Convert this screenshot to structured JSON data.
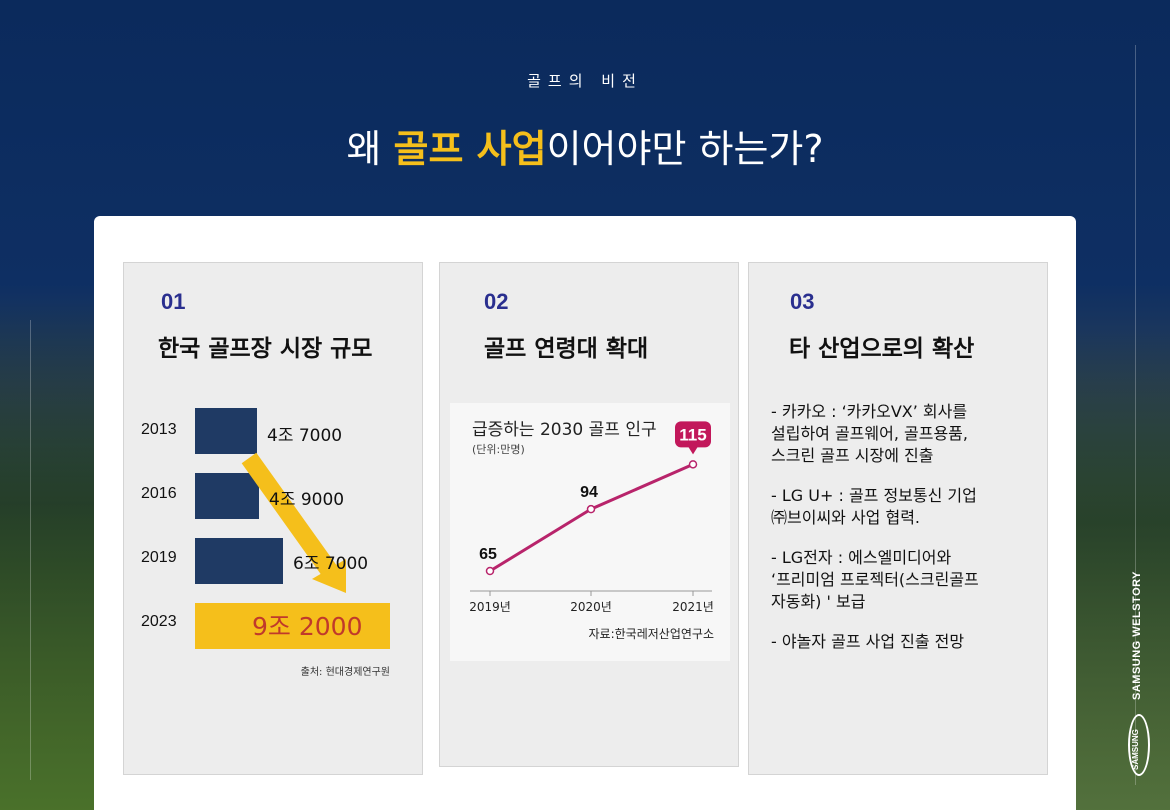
{
  "header": {
    "subtitle": "골프의 비전",
    "headline_prefix": "왜 ",
    "headline_highlight": "골프 사업",
    "headline_suffix": "이어야만 하는가?"
  },
  "cards": [
    {
      "number": "01",
      "title": "한국 골프장 시장 규모",
      "source": "출처: 현대경제연구원",
      "chart_data": {
        "type": "bar",
        "categories": [
          "2013",
          "2016",
          "2019",
          "2023"
        ],
        "value_labels": [
          "4조 7000",
          "4조 9000",
          "6조 7000",
          "9조 2000"
        ],
        "values": [
          47000,
          49000,
          67000,
          92000
        ],
        "colors": {
          "bar": "#1f3a64",
          "highlight": "#f5bf1b",
          "highlight_text": "#c0392b"
        }
      }
    },
    {
      "number": "02",
      "title": "골프 연령대 확대",
      "chart": {
        "title": "급증하는 2030 골프 인구",
        "unit": "(단위:만명)",
        "source": "자료:한국레저산업연구소"
      },
      "chart_data": {
        "type": "line",
        "x": [
          "2019년",
          "2020년",
          "2021년"
        ],
        "values": [
          65,
          94,
          115
        ],
        "ylim": [
          50,
          125
        ],
        "colors": {
          "line": "#b8246b",
          "highlight_bubble": "#c2185b"
        }
      }
    },
    {
      "number": "03",
      "title": "타 산업으로의 확산",
      "items": [
        "- 카카오 : ‘카카오VX’ 회사를\n  설립하여 골프웨어, 골프용품,\n  스크린 골프 시장에 진출",
        "- LG U+ : 골프 정보통신 기업\n  ㈜브이씨와 사업 협력.",
        "- LG전자 : 에스엘미디어와\n  ‘프리미엄 프로젝터(스크린골프\n  자동화) ' 보급",
        "- 야놀자 골프 사업 진출 전망"
      ]
    }
  ],
  "brand": {
    "text": "SAMSUNG WELSTORY",
    "logo_text": "SAMSUNG"
  },
  "colors": {
    "navy": "#0c2a5b",
    "accent": "#f5bf1b",
    "number": "#2a2f8f"
  }
}
